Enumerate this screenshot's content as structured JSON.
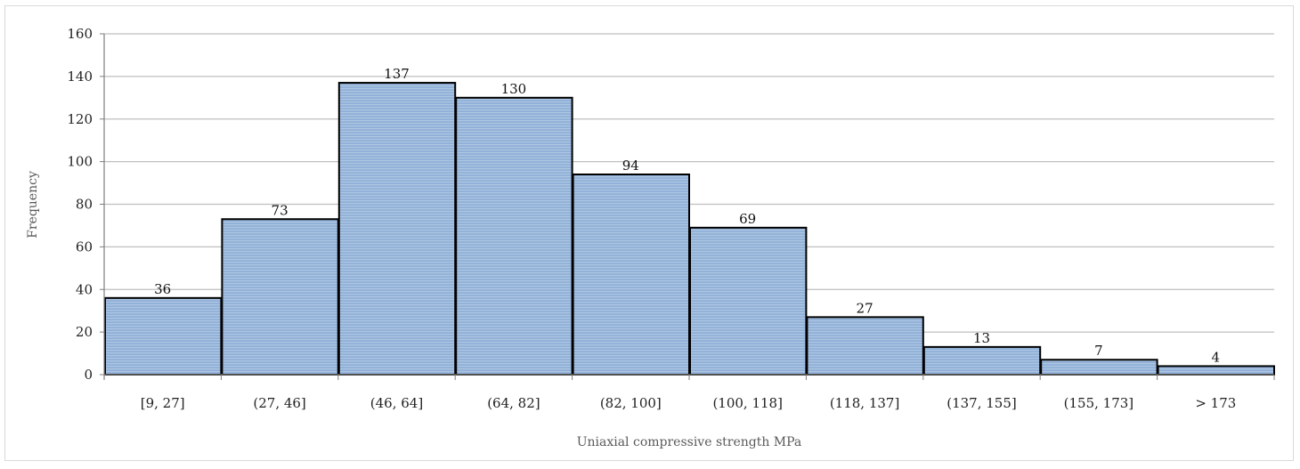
{
  "chart_data": {
    "type": "bar",
    "title": "",
    "xlabel": "Uniaxial compressive strength MPa",
    "ylabel": "Frequency",
    "categories": [
      "[9, 27]",
      "(27, 46]",
      "(46, 64]",
      "(64, 82]",
      "(82, 100]",
      "(100, 118]",
      "(118, 137]",
      "(137, 155]",
      "(155, 173]",
      "> 173"
    ],
    "values": [
      36,
      73,
      137,
      130,
      94,
      69,
      27,
      13,
      7,
      4
    ],
    "ylim": [
      0,
      160
    ],
    "yticks": [
      0,
      20,
      40,
      60,
      80,
      100,
      120,
      140,
      160
    ],
    "grid": true,
    "legend": "none",
    "data_labels": true,
    "bar_color": "#95b3d7",
    "bar_edge_color": "#000000"
  }
}
